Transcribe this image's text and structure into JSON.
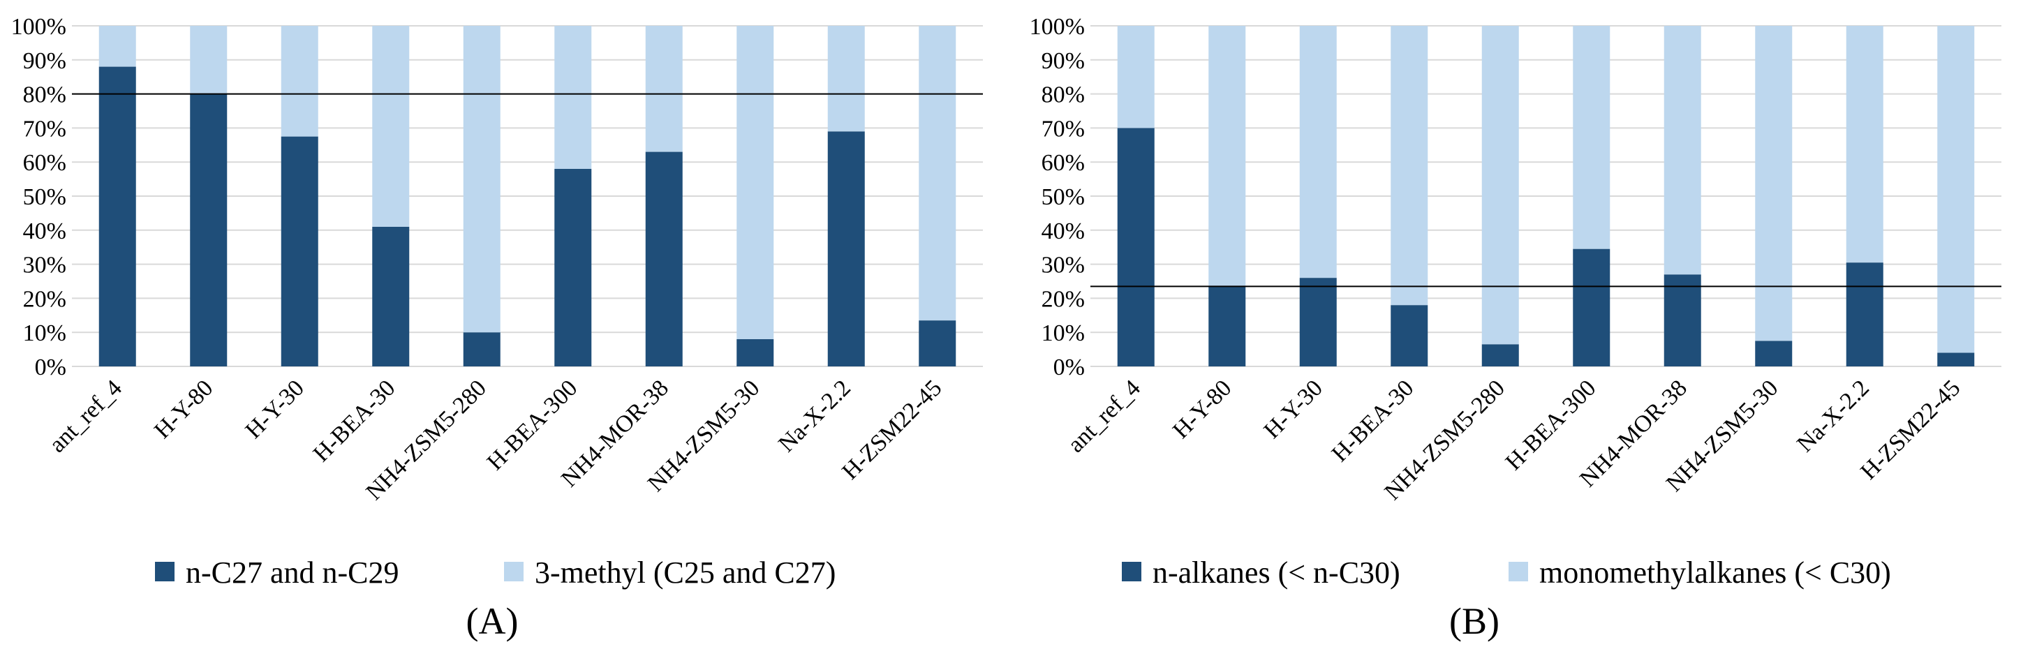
{
  "colors": {
    "dark": "#1f4e79",
    "light": "#bdd7ee",
    "grid": "#d9d9d9",
    "ref_line": "#000000"
  },
  "chart_data": [
    {
      "type": "bar",
      "stacked": "percent",
      "panel_label": "(A)",
      "categories": [
        "ant_ref_4",
        "H-Y-80",
        "H-Y-30",
        "H-BEA-30",
        "NH4-ZSM5-280",
        "H-BEA-300",
        "NH4-MOR-38",
        "NH4-ZSM5-30",
        "Na-X-2.2",
        "H-ZSM22-45"
      ],
      "series": [
        {
          "name": "n-C27 and n-C29",
          "color": "#1f4e79",
          "values": [
            88,
            80,
            67.5,
            41,
            10,
            58,
            63,
            8,
            69,
            13.5
          ]
        },
        {
          "name": "3-methyl (C25 and C27)",
          "color": "#bdd7ee",
          "values": [
            12,
            20,
            32.5,
            59,
            90,
            42,
            37,
            92,
            31,
            86.5
          ]
        }
      ],
      "reference_line": 80,
      "ylim": [
        0,
        100
      ],
      "yticks": [
        "0%",
        "10%",
        "20%",
        "30%",
        "40%",
        "50%",
        "60%",
        "70%",
        "80%",
        "90%",
        "100%"
      ],
      "grid": true,
      "legend_position": "bottom"
    },
    {
      "type": "bar",
      "stacked": "percent",
      "panel_label": "(B)",
      "categories": [
        "ant_ref_4",
        "H-Y-80",
        "H-Y-30",
        "H-BEA-30",
        "NH4-ZSM5-280",
        "H-BEA-300",
        "NH4-MOR-38",
        "NH4-ZSM5-30",
        "Na-X-2.2",
        "H-ZSM22-45"
      ],
      "series": [
        {
          "name": "n-alkanes (< n-C30)",
          "color": "#1f4e79",
          "values": [
            70,
            23.5,
            26,
            18,
            6.5,
            34.5,
            27,
            7.5,
            30.5,
            4
          ]
        },
        {
          "name": "monomethylalkanes (< C30)",
          "color": "#bdd7ee",
          "values": [
            30,
            76.5,
            74,
            82,
            93.5,
            65.5,
            73,
            92.5,
            69.5,
            96
          ]
        }
      ],
      "reference_line": 23.5,
      "ylim": [
        0,
        100
      ],
      "yticks": [
        "0%",
        "10%",
        "20%",
        "30%",
        "40%",
        "50%",
        "60%",
        "70%",
        "80%",
        "90%",
        "100%"
      ],
      "grid": true,
      "legend_position": "bottom"
    }
  ]
}
